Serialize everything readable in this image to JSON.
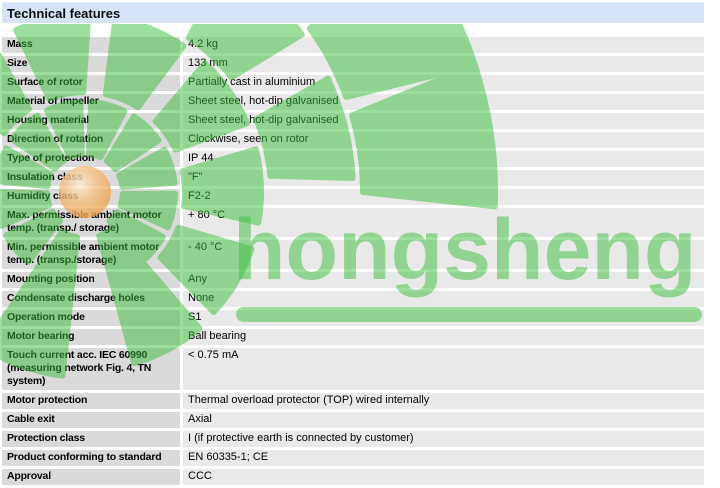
{
  "header": {
    "title": "Technical features"
  },
  "table": {
    "rows": [
      {
        "label": "Mass",
        "value": "4.2 kg"
      },
      {
        "label": "Size",
        "value": "133 mm"
      },
      {
        "label": "Surface of rotor",
        "value": "Partially cast in aluminium"
      },
      {
        "label": "Material of impeller",
        "value": "Sheet steel, hot-dip galvanised"
      },
      {
        "label": "Housing material",
        "value": "Sheet steel, hot-dip galvanised"
      },
      {
        "label": "Direction of rotation",
        "value": "Clockwise, seen on rotor"
      },
      {
        "label": "Type of protection",
        "value": "IP 44"
      },
      {
        "label": "Insulation class",
        "value": "\"F\""
      },
      {
        "label": "Humidity class",
        "value": "F2-2"
      },
      {
        "label": "Max. permissible ambient motor\ntemp. (transp./ storage)",
        "value": "+ 80 °C"
      },
      {
        "label": "Min. permissible ambient motor\ntemp. (transp./storage)",
        "value": "- 40 °C"
      },
      {
        "label": "Mounting position",
        "value": "Any"
      },
      {
        "label": "Condensate discharge holes",
        "value": "None"
      },
      {
        "label": "Operation mode",
        "value": "S1"
      },
      {
        "label": "Motor bearing",
        "value": "Ball bearing"
      },
      {
        "label": "Touch current acc. IEC 60990\n(measuring network Fig. 4, TN\nsystem)",
        "value": "< 0.75 mA"
      },
      {
        "label": "Motor protection",
        "value": "Thermal overload protector (TOP) wired internally"
      },
      {
        "label": "Cable exit",
        "value": "Axial"
      },
      {
        "label": "Protection class",
        "value": "I (if protective earth is connected by customer)"
      },
      {
        "label": "Product conforming to standard",
        "value": "EN 60335-1; CE"
      },
      {
        "label": "Approval",
        "value": "CCC"
      }
    ]
  },
  "watermark": {
    "text": "hongsheng",
    "logo": "fan-pinwheel-icon"
  },
  "colors": {
    "header_band": "#d7e4f8",
    "label_cell": "#dadada",
    "value_cell": "#e9e9e9",
    "watermark_green": "#3cbe3c",
    "watermark_orange": "#ec9d4a"
  }
}
